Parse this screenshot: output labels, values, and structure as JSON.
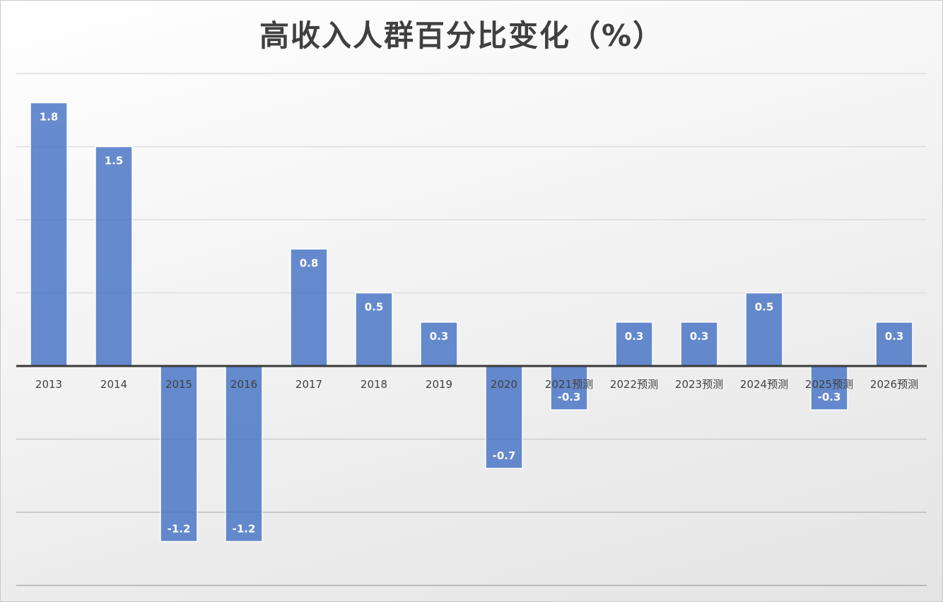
{
  "chart_data": {
    "type": "bar",
    "title": "高收入人群百分比变化（%）",
    "xlabel": "",
    "ylabel": "",
    "categories": [
      "2013",
      "2014",
      "2015",
      "2016",
      "2017",
      "2018",
      "2019",
      "2020",
      "2021预测",
      "2022预测",
      "2023预测",
      "2024预测",
      "2025预测",
      "2026预测"
    ],
    "values": [
      1.8,
      1.5,
      -1.2,
      -1.2,
      0.8,
      0.5,
      0.3,
      -0.7,
      -0.3,
      0.3,
      0.3,
      0.5,
      -0.3,
      0.3
    ],
    "data_labels": [
      "1.8",
      "1.5",
      "-1.2",
      "-1.2",
      "0.8",
      "0.5",
      "0.3",
      "-0.7",
      "-0.3",
      "0.3",
      "0.3",
      "0.5",
      "-0.3",
      "0.3"
    ],
    "ylim": [
      -1.5,
      2.0
    ],
    "y_gridline_step": 0.5,
    "grid": true,
    "legend": "none",
    "y_tick_labels_shown": false,
    "bar_color": "#4472c4"
  }
}
